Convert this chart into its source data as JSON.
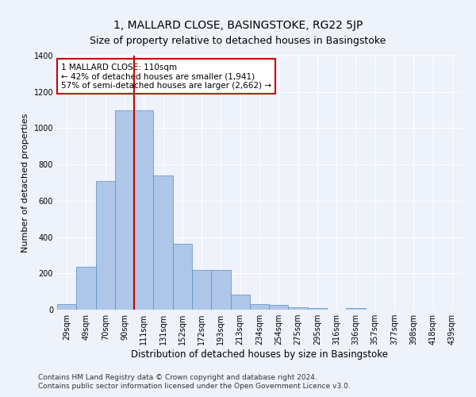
{
  "title": "1, MALLARD CLOSE, BASINGSTOKE, RG22 5JP",
  "subtitle": "Size of property relative to detached houses in Basingstoke",
  "xlabel": "Distribution of detached houses by size in Basingstoke",
  "ylabel": "Number of detached properties",
  "bar_labels": [
    "29sqm",
    "49sqm",
    "70sqm",
    "90sqm",
    "111sqm",
    "131sqm",
    "152sqm",
    "172sqm",
    "193sqm",
    "213sqm",
    "234sqm",
    "254sqm",
    "275sqm",
    "295sqm",
    "316sqm",
    "336sqm",
    "357sqm",
    "377sqm",
    "398sqm",
    "418sqm",
    "439sqm"
  ],
  "bar_values": [
    30,
    235,
    710,
    1100,
    1100,
    740,
    365,
    220,
    220,
    85,
    30,
    25,
    15,
    10,
    0,
    10,
    0,
    0,
    0,
    0,
    0
  ],
  "bar_color": "#aec6e8",
  "bar_edgecolor": "#5a8fc2",
  "vline_color": "#cc0000",
  "annotation_text": "1 MALLARD CLOSE: 110sqm\n← 42% of detached houses are smaller (1,941)\n57% of semi-detached houses are larger (2,662) →",
  "annotation_box_color": "#cc0000",
  "ylim": [
    0,
    1400
  ],
  "yticks": [
    0,
    200,
    400,
    600,
    800,
    1000,
    1200,
    1400
  ],
  "footnote1": "Contains HM Land Registry data © Crown copyright and database right 2024.",
  "footnote2": "Contains public sector information licensed under the Open Government Licence v3.0.",
  "background_color": "#eef2fa",
  "grid_color": "#ffffff",
  "title_fontsize": 10,
  "subtitle_fontsize": 9,
  "label_fontsize": 8,
  "tick_fontsize": 7,
  "footnote_fontsize": 6.5,
  "annotation_fontsize": 7.5
}
